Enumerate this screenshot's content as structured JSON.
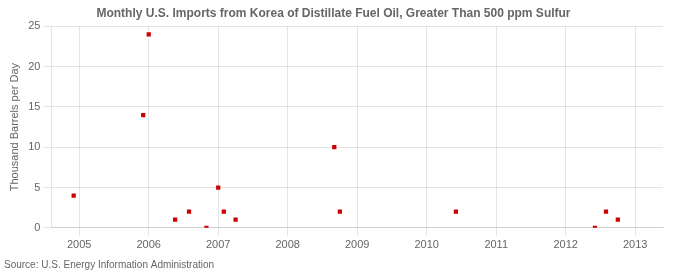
{
  "chart_data": {
    "type": "scatter",
    "title": "Monthly U.S. Imports from Korea of Distillate Fuel Oil, Greater Than 500 ppm Sulfur",
    "ylabel": "Thousand Barrels per Day",
    "source": "Source: U.S. Energy Information Administration",
    "x": [
      2004.92,
      2005.92,
      2006.0,
      2006.38,
      2006.58,
      2006.83,
      2007.0,
      2007.08,
      2007.25,
      2008.67,
      2008.75,
      2010.42,
      2012.42,
      2012.58,
      2012.75
    ],
    "values": [
      4,
      14,
      24,
      1,
      2,
      0,
      5,
      2,
      1,
      10,
      2,
      2,
      0,
      2,
      1
    ],
    "color": "#cc0000",
    "marker": "square",
    "xlim": [
      2004.6,
      2013.4
    ],
    "xticks": [
      2005,
      2006,
      2007,
      2008,
      2009,
      2010,
      2011,
      2012,
      2013
    ],
    "ylim": [
      0,
      25
    ],
    "yticks": [
      0,
      5,
      10,
      15,
      20,
      25
    ],
    "grid": true
  }
}
